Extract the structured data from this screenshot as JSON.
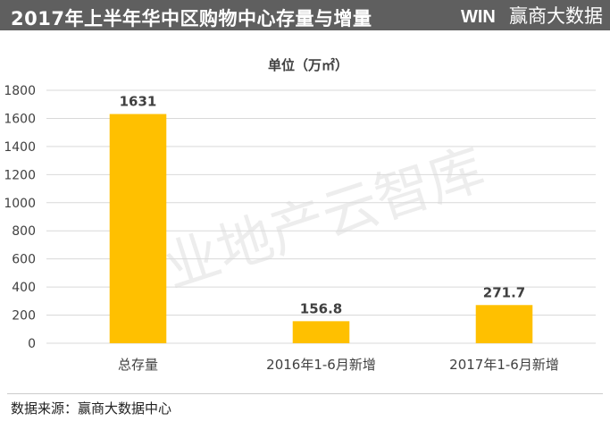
{
  "header": {
    "title": "2017年上半年华中区购物中心存量与增量",
    "logo_text": "赢商大数据",
    "logo_mark": "WIN"
  },
  "footer": {
    "source": "数据来源：赢商大数据中心"
  },
  "watermark": "商业地产云智库",
  "colors": {
    "bar": "#FFC000",
    "header_bg": "#5f5f5f",
    "gridline": "#d9d9d9"
  },
  "chart_data": {
    "type": "bar",
    "title": "单位（万㎡）",
    "categories": [
      "总存量",
      "2016年1-6月新增",
      "2017年1-6月新增"
    ],
    "values": [
      1631,
      156.8,
      271.7
    ],
    "data_labels": [
      "1631",
      "156.8",
      "271.7"
    ],
    "y_ticks": [
      0,
      200,
      400,
      600,
      800,
      1000,
      1200,
      1400,
      1600,
      1800
    ],
    "ylim": [
      0,
      1800
    ],
    "grid": true,
    "legend": "none"
  }
}
